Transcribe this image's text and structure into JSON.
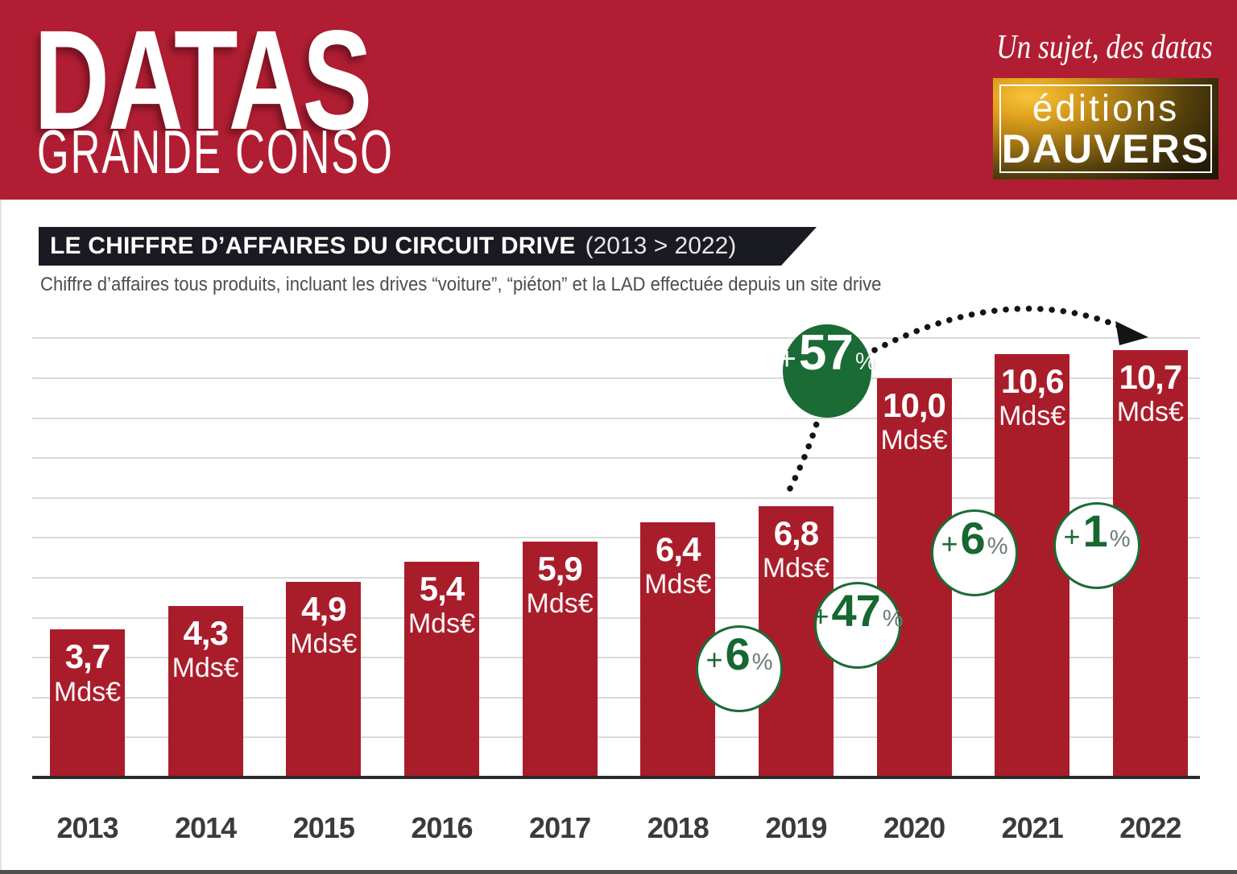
{
  "header": {
    "brand_title": "DATAS",
    "brand_subtitle": "GRANDE CONSO",
    "tagline": "Un sujet, des datas",
    "logo": {
      "line1": "éditions",
      "line2": "DAUVERS"
    }
  },
  "title_bar": {
    "title": "LE CHIFFRE D’AFFAIRES DU CIRCUIT DRIVE",
    "range": "(2013 > 2022)"
  },
  "subtitle": "Chiffre d’affaires tous produits, incluant les drives “voiture”, “piéton” et la LAD effectuée depuis un site drive",
  "colors": {
    "header_red": "#B11E33",
    "bar_red": "#A91D2B",
    "banner_black": "#1A1A22",
    "green": "#1A6B35",
    "percent_gray": "#6F7B70",
    "grid_gray": "#DADADA",
    "axis_dark": "#2B2B2B",
    "year_gray": "#3B3B3B",
    "gold": "#E9A81F",
    "dot_black": "#141414"
  },
  "chart_data": {
    "type": "bar",
    "title": "LE CHIFFRE D’AFFAIRES DU CIRCUIT DRIVE (2013 > 2022)",
    "subtitle": "Chiffre d’affaires tous produits, incluant les drives “voiture”, “piéton” et la LAD effectuée depuis un site drive",
    "categories": [
      "2013",
      "2014",
      "2015",
      "2016",
      "2017",
      "2018",
      "2019",
      "2020",
      "2021",
      "2022"
    ],
    "values": [
      3.7,
      4.3,
      4.9,
      5.4,
      5.9,
      6.4,
      6.8,
      10.0,
      10.6,
      10.7
    ],
    "value_labels": [
      "3,7",
      "4,3",
      "4,9",
      "5,4",
      "5,9",
      "6,4",
      "6,8",
      "10,0",
      "10,6",
      "10,7"
    ],
    "unit": "Mds€",
    "xlabel": "",
    "ylabel": "",
    "ylim": [
      0,
      11
    ],
    "grid": "horizontal, 1 Md€ steps, no tick labels",
    "legend": "none",
    "growth_badges": [
      {
        "plus": "+",
        "value": "6",
        "suffix": "%",
        "between": [
          "2018",
          "2019"
        ],
        "style": "outline"
      },
      {
        "plus": "+",
        "value": "47",
        "suffix": "%",
        "between": [
          "2019",
          "2020"
        ],
        "style": "outline"
      },
      {
        "plus": "+",
        "value": "6",
        "suffix": "%",
        "between": [
          "2020",
          "2021"
        ],
        "style": "outline"
      },
      {
        "plus": "+",
        "value": "1",
        "suffix": "%",
        "between": [
          "2021",
          "2022"
        ],
        "style": "outline"
      },
      {
        "plus": "+",
        "value": "57",
        "suffix": "%",
        "between": [
          "2019",
          "2022"
        ],
        "style": "filled"
      }
    ],
    "annotation": "dotted arrow from 2019 bar through +57% bubble to 2022 bar"
  }
}
